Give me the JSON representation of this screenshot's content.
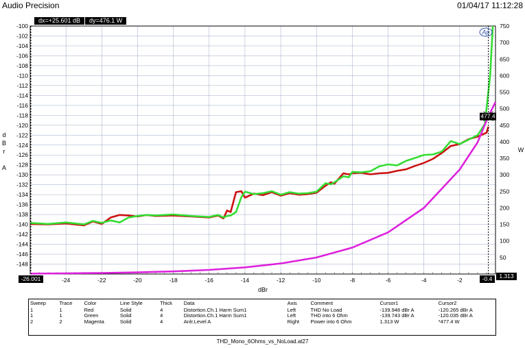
{
  "header": {
    "title": "Audio Precision",
    "datetime": "01/04/17 11:12:28"
  },
  "cursor_readouts": {
    "dx": "dx=+25.601  dB",
    "dy": "dy=476.1   W"
  },
  "cursor_values": {
    "x1": "-26.001",
    "x2": "-0.4",
    "y_right_marker": "477.4",
    "y_right_bottom": "1.313"
  },
  "logo": "Ap",
  "filename": "THD_Mono_6Ohms_vs_NoLoad.at27",
  "legend": {
    "headers": [
      "Sweep",
      "Trace",
      "Color",
      "Line Style",
      "Thick",
      "Data",
      "Axis",
      "Comment",
      "Cursor1",
      "Cursor2"
    ],
    "rows": [
      [
        "1",
        "1",
        "Red",
        "Solid",
        "4",
        "Distortion.Ch.1 Harm Sum1",
        "Left",
        "THD No Load",
        "-139.948  dBr A",
        "-120.265  dBr A"
      ],
      [
        "1",
        "1",
        "Green",
        "Solid",
        "4",
        "Distortion.Ch.1 Harm Sum1",
        "Left",
        "THD into 6 Ohm",
        "-139.743  dBr A",
        "-120.035  dBr A"
      ],
      [
        "2",
        "2",
        "Magenta",
        "Solid",
        "4",
        "Anlr.Level A",
        "Right",
        "Power into 6 Ohm",
        "1.313    W",
        "*477.4    W"
      ]
    ]
  },
  "chart_data": {
    "type": "line",
    "xlabel": "dBr",
    "ylabel_left": "d\nB\nr\n\nA",
    "ylabel_right": "W",
    "xlim": [
      -26,
      0
    ],
    "ylim_left": [
      -150,
      -100
    ],
    "ylim_right": [
      0,
      750
    ],
    "x_ticks": [
      -24,
      -22,
      -20,
      -18,
      -16,
      -14,
      -12,
      -10,
      -8,
      -6,
      -4,
      -2
    ],
    "y_left_ticks": [
      -100,
      -102,
      -104,
      -106,
      -108,
      -110,
      -112,
      -114,
      -116,
      -118,
      -120,
      -122,
      -124,
      -126,
      -128,
      -130,
      -132,
      -134,
      -136,
      -138,
      -140,
      -142,
      -144,
      -146,
      -148
    ],
    "y_right_ticks": [
      750,
      700,
      650,
      600,
      550,
      500,
      450,
      400,
      350,
      300,
      250,
      200,
      150,
      100,
      50
    ],
    "grid": true,
    "series": [
      {
        "name": "THD No Load",
        "color": "#cc1111",
        "axis": "left",
        "x": [
          -26,
          -25,
          -24,
          -23,
          -22.5,
          -22,
          -21.5,
          -21,
          -20.5,
          -20,
          -19.5,
          -19,
          -18,
          -17,
          -16,
          -15.5,
          -15.2,
          -15,
          -14.8,
          -14.5,
          -14.2,
          -14,
          -13.5,
          -13,
          -12.5,
          -12,
          -11.5,
          -11,
          -10.5,
          -10,
          -9.5,
          -9.2,
          -9,
          -8.5,
          -8.2,
          -8,
          -7.5,
          -7,
          -6.5,
          -6,
          -5.5,
          -5,
          -4.5,
          -4,
          -3.5,
          -3,
          -2.5,
          -2,
          -1.5,
          -1,
          -0.5,
          -0.4
        ],
        "y": [
          -139.9,
          -140,
          -139.8,
          -140.2,
          -139.4,
          -139.9,
          -138.6,
          -138.1,
          -138.2,
          -138.4,
          -138.1,
          -138.3,
          -138.2,
          -138.4,
          -138.6,
          -138.2,
          -138.8,
          -137.2,
          -137.5,
          -133.5,
          -133.3,
          -134.6,
          -133.8,
          -134.1,
          -133.5,
          -134.2,
          -133.7,
          -134,
          -133.9,
          -133.6,
          -132.2,
          -131.5,
          -131.8,
          -129.7,
          -129.9,
          -129.7,
          -129.6,
          -129.9,
          -129.7,
          -129.6,
          -129.2,
          -128.9,
          -128.2,
          -127.6,
          -126.8,
          -125.6,
          -124.2,
          -123.8,
          -122.8,
          -122.3,
          -121.5,
          -120.3
        ]
      },
      {
        "name": "THD into 6 Ohm",
        "color": "#33dd33",
        "axis": "left",
        "x": [
          -26,
          -25,
          -24,
          -23,
          -22.5,
          -22,
          -21.5,
          -21,
          -20.5,
          -20,
          -19.5,
          -19,
          -18,
          -17,
          -16,
          -15.5,
          -15.2,
          -15,
          -14.8,
          -14.5,
          -14.2,
          -14,
          -13.5,
          -13,
          -12.5,
          -12,
          -11.5,
          -11,
          -10.5,
          -10,
          -9.5,
          -9.2,
          -9,
          -8.5,
          -8.2,
          -8,
          -7.5,
          -7,
          -6.5,
          -6,
          -5.5,
          -5,
          -4.5,
          -4,
          -3.5,
          -3,
          -2.5,
          -2,
          -1.5,
          -1,
          -0.6,
          -0.3,
          -0.15
        ],
        "y": [
          -139.7,
          -139.9,
          -139.6,
          -140,
          -139.3,
          -139.7,
          -139.2,
          -139.6,
          -138.6,
          -138.3,
          -138.1,
          -138.2,
          -138,
          -138.3,
          -138.5,
          -138.1,
          -138.6,
          -138.3,
          -138.2,
          -137.5,
          -134.5,
          -133.4,
          -133.9,
          -133.7,
          -133.3,
          -134,
          -133.5,
          -133.8,
          -133.7,
          -133.4,
          -131.7,
          -131.9,
          -131.5,
          -130.3,
          -130.5,
          -129.4,
          -129.5,
          -129.3,
          -128.3,
          -127.9,
          -128.1,
          -127.2,
          -126.6,
          -126,
          -125.9,
          -125.3,
          -123.2,
          -123.8,
          -122.9,
          -122,
          -119.8,
          -110,
          -100
        ]
      },
      {
        "name": "Power into 6 Ohm",
        "color": "#dd22dd",
        "axis": "right",
        "x": [
          -26,
          -24,
          -22,
          -20,
          -18,
          -16,
          -14,
          -12,
          -10,
          -8,
          -6,
          -4,
          -2,
          -1,
          -0.4,
          0
        ],
        "y": [
          1.3,
          2.0,
          3.2,
          5.0,
          7.9,
          12.5,
          20,
          32,
          50,
          80,
          126,
          200,
          316,
          398,
          477,
          520
        ]
      }
    ]
  }
}
